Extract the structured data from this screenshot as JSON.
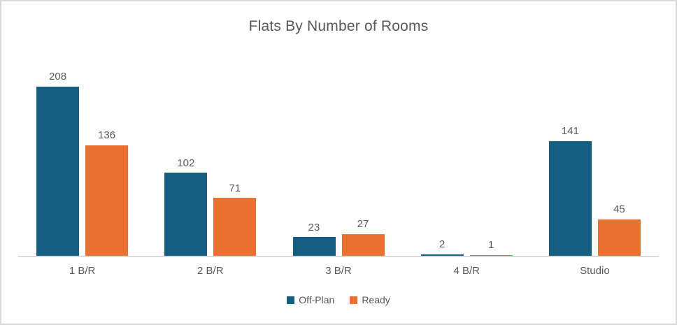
{
  "chart_data": {
    "type": "bar",
    "title": "Flats By Number of Rooms",
    "categories": [
      "1 B/R",
      "2 B/R",
      "3 B/R",
      "4 B/R",
      "Studio"
    ],
    "series": [
      {
        "name": "Off-Plan",
        "color": "#156082",
        "values": [
          208,
          102,
          23,
          2,
          141
        ]
      },
      {
        "name": "Ready",
        "color": "#E97132",
        "values": [
          136,
          71,
          27,
          1,
          45
        ]
      }
    ],
    "xlabel": "",
    "ylabel": "",
    "ylim": [
      0,
      250
    ],
    "grid": false,
    "y_axis_visible": false,
    "data_labels": true,
    "legend_position": "bottom"
  },
  "colors": {
    "title_text": "#595959",
    "label_text": "#595959",
    "axis_line": "#d9d9d9",
    "frame_border": "#d9d9d9",
    "background": "#ffffff"
  }
}
